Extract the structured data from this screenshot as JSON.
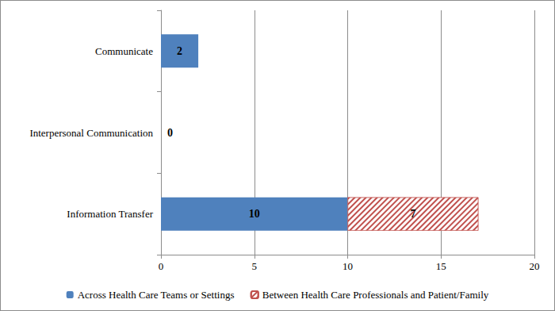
{
  "chart_data": {
    "type": "bar",
    "orientation": "horizontal",
    "stacked": true,
    "data_labels": true,
    "grid": true,
    "legend": "bottom",
    "categories": [
      "Communicate",
      "Interpersonal Communication",
      "Information Transfer"
    ],
    "series": [
      {
        "name": "Across Health Care Teams or Settings",
        "color": "#4f81bd",
        "values": [
          2,
          0,
          10
        ]
      },
      {
        "name": "Between Health Care Professionals and Patient/Family",
        "color": "#c0504d",
        "values": [
          null,
          null,
          7
        ]
      }
    ],
    "xlim": [
      0,
      20
    ],
    "xticks": [
      0,
      5,
      10,
      15,
      20
    ]
  }
}
